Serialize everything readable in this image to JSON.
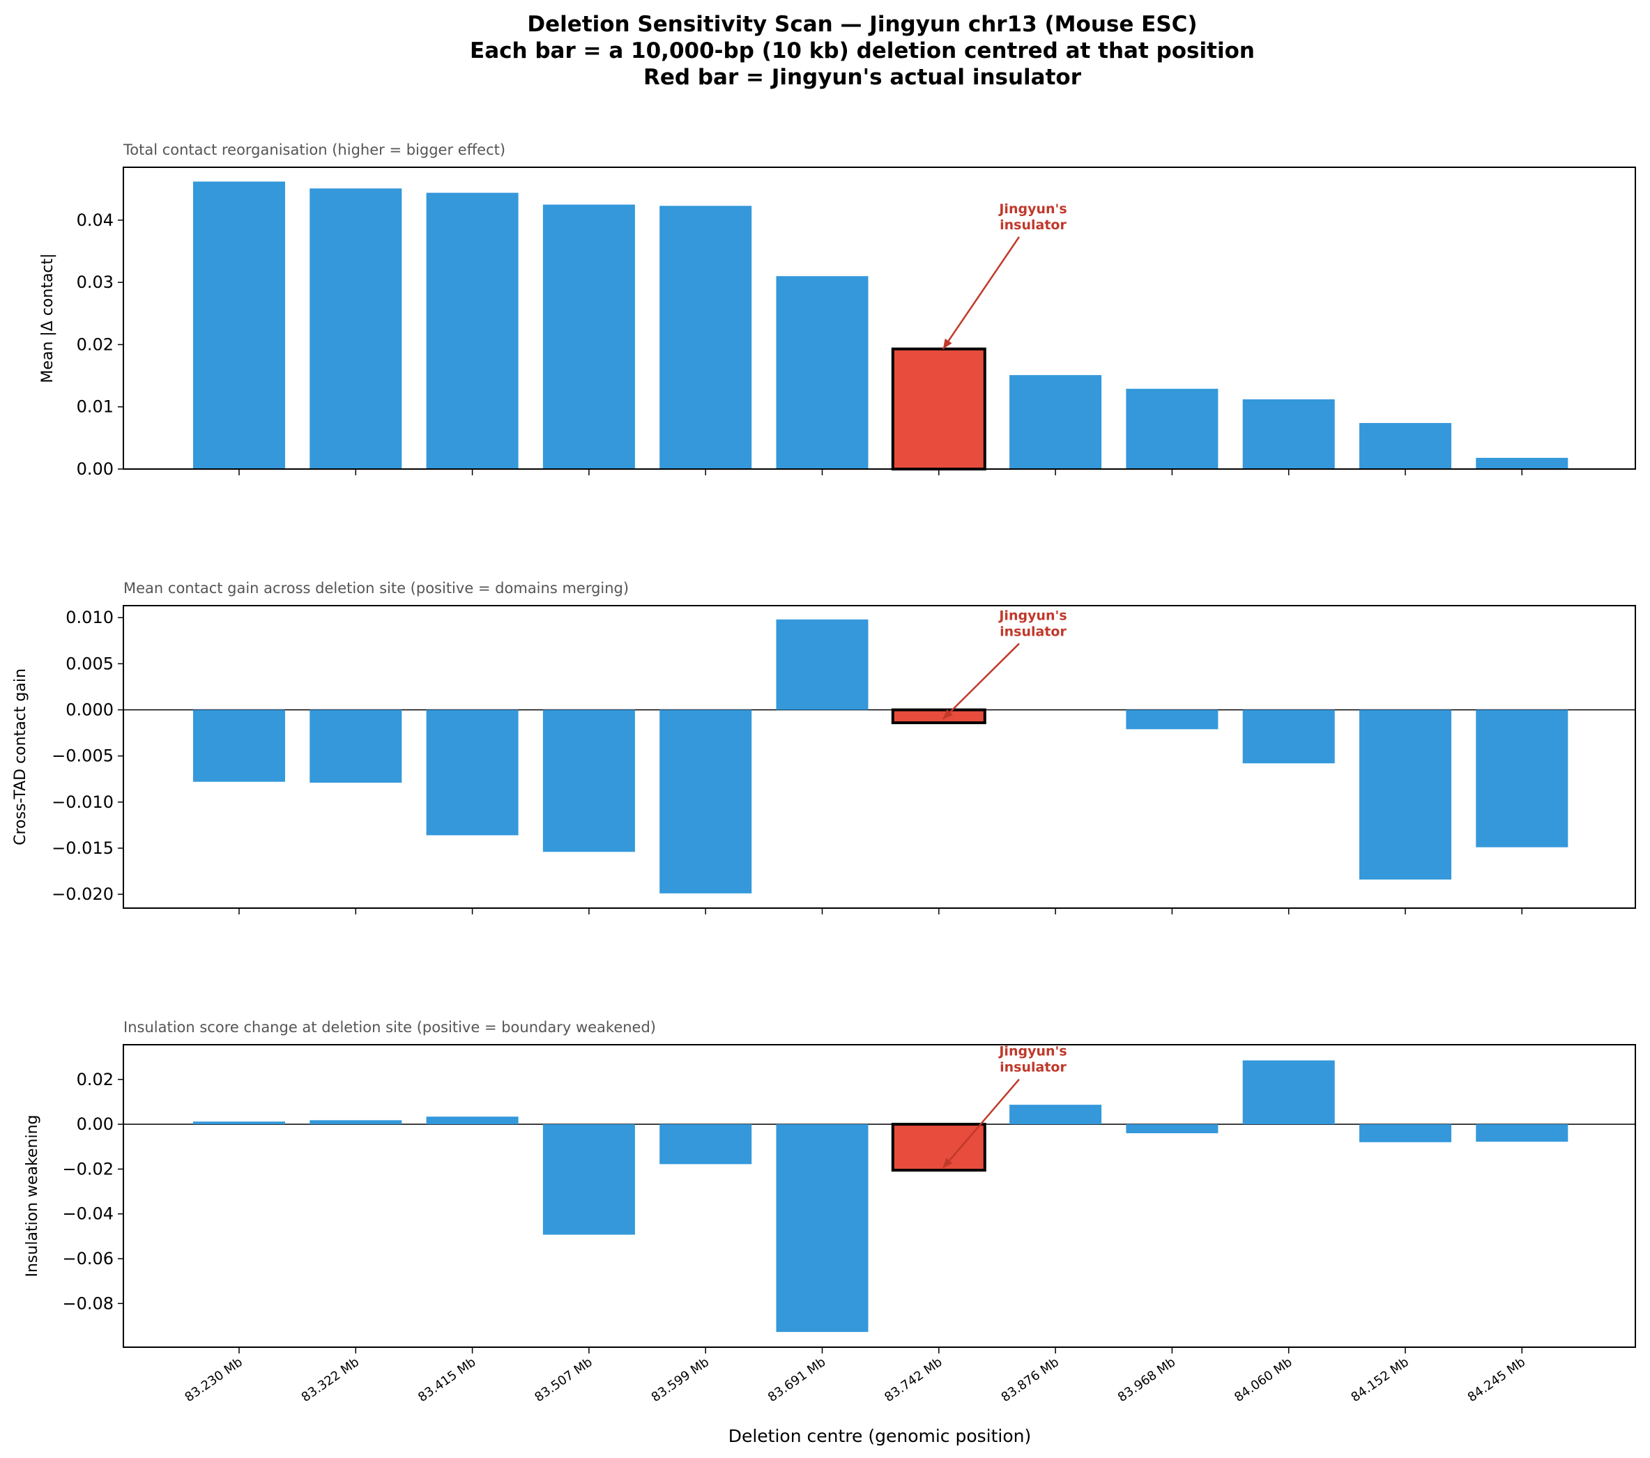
{
  "chart_data": {
    "title_lines": [
      "Deletion Sensitivity Scan — Jingyun chr13 (Mouse ESC)",
      "Each bar = a 10,000-bp (10 kb) deletion centred at that position",
      "Red bar = Jingyun's actual insulator"
    ],
    "categories": [
      "83.230 Mb",
      "83.322 Mb",
      "83.415 Mb",
      "83.507 Mb",
      "83.599 Mb",
      "83.691 Mb",
      "83.742 Mb",
      "83.876 Mb",
      "83.968 Mb",
      "84.060 Mb",
      "84.152 Mb",
      "84.245 Mb"
    ],
    "xlabel": "Deletion centre (genomic position)",
    "highlight_index": 6,
    "colors": {
      "bar": "#3498db",
      "highlight": "#e74c3c",
      "annotation": "#c0392b",
      "edge": "#000000"
    },
    "panels": [
      {
        "type": "bar",
        "subtitle": "Total contact reorganisation (higher = bigger effect)",
        "ylabel": "Mean |Δ contact|",
        "ylim": [
          0,
          0.0485
        ],
        "yticks": [
          0.0,
          0.01,
          0.02,
          0.03,
          0.04
        ],
        "ytick_labels": [
          "0.00",
          "0.01",
          "0.02",
          "0.03",
          "0.04"
        ],
        "values": [
          0.0462,
          0.0451,
          0.0444,
          0.0425,
          0.0423,
          0.031,
          0.0193,
          0.0151,
          0.0129,
          0.0112,
          0.0074,
          0.0018
        ],
        "zero_line": false,
        "annotation": {
          "text_lines": [
            "Jingyun's",
            "insulator"
          ],
          "text_anchor": 0.04,
          "arrow_tip": 0.0193
        }
      },
      {
        "type": "bar",
        "subtitle": "Mean contact gain across deletion site (positive = domains merging)",
        "ylabel": "Cross-TAD contact gain",
        "ylim": [
          -0.0215,
          0.0113
        ],
        "yticks": [
          -0.02,
          -0.015,
          -0.01,
          -0.005,
          0.0,
          0.005,
          0.01
        ],
        "ytick_labels": [
          "−0.020",
          "−0.015",
          "−0.010",
          "−0.005",
          "0.000",
          "0.005",
          "0.010"
        ],
        "values": [
          -0.0078,
          -0.0079,
          -0.0136,
          -0.0154,
          -0.0199,
          0.0098,
          -0.0014,
          0.0,
          -0.0021,
          -0.0058,
          -0.0184,
          -0.0149
        ],
        "zero_line": true,
        "annotation": {
          "text_lines": [
            "Jingyun's",
            "insulator"
          ],
          "text_anchor": 0.009,
          "arrow_tip": -0.001
        }
      },
      {
        "type": "bar",
        "subtitle": "Insulation score change at deletion site (positive = boundary weakened)",
        "ylabel": "Insulation weakening",
        "ylim": [
          -0.0995,
          0.0355
        ],
        "yticks": [
          -0.08,
          -0.06,
          -0.04,
          -0.02,
          0.0,
          0.02
        ],
        "ytick_labels": [
          "−0.08",
          "−0.06",
          "−0.04",
          "−0.02",
          "0.00",
          "0.02"
        ],
        "values": [
          0.0012,
          0.0018,
          0.0034,
          -0.0493,
          -0.0178,
          -0.0927,
          -0.0205,
          0.0087,
          -0.004,
          0.0285,
          -0.008,
          -0.0078
        ],
        "zero_line": true,
        "annotation": {
          "text_lines": [
            "Jingyun's",
            "insulator"
          ],
          "text_anchor": 0.0275,
          "arrow_tip": -0.0195
        }
      }
    ]
  }
}
